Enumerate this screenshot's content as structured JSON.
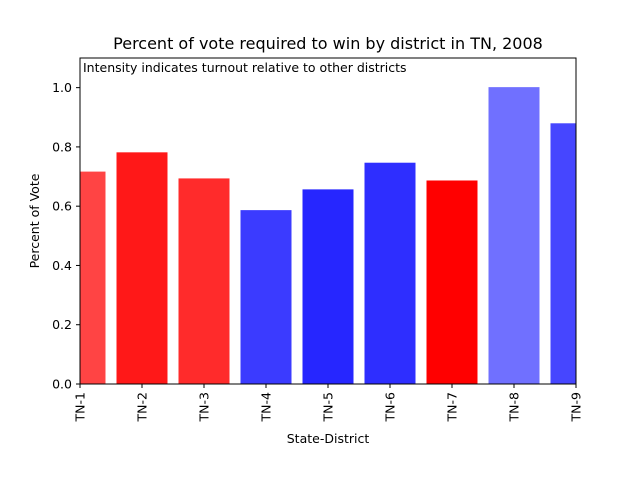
{
  "chart_data": {
    "type": "bar",
    "title": "Percent of vote required to win by district in TN, 2008",
    "annotation": "Intensity indicates turnout relative to other districts",
    "xlabel": "State-District",
    "ylabel": "Percent of Vote",
    "ylim": [
      0.0,
      1.1
    ],
    "yticks": [
      "0.0",
      "0.2",
      "0.4",
      "0.6",
      "0.8",
      "1.0"
    ],
    "grid": false,
    "categories": [
      "TN-1",
      "TN-2",
      "TN-3",
      "TN-4",
      "TN-5",
      "TN-6",
      "TN-7",
      "TN-8",
      "TN-9"
    ],
    "values": [
      0.715,
      0.78,
      0.692,
      0.585,
      0.655,
      0.745,
      0.685,
      1.0,
      0.878
    ],
    "colors": [
      "#ff4444",
      "#ff1818",
      "#ff2b2b",
      "#3b3bff",
      "#2626ff",
      "#2e2eff",
      "#ff0000",
      "#7070ff",
      "#4646ff"
    ]
  }
}
